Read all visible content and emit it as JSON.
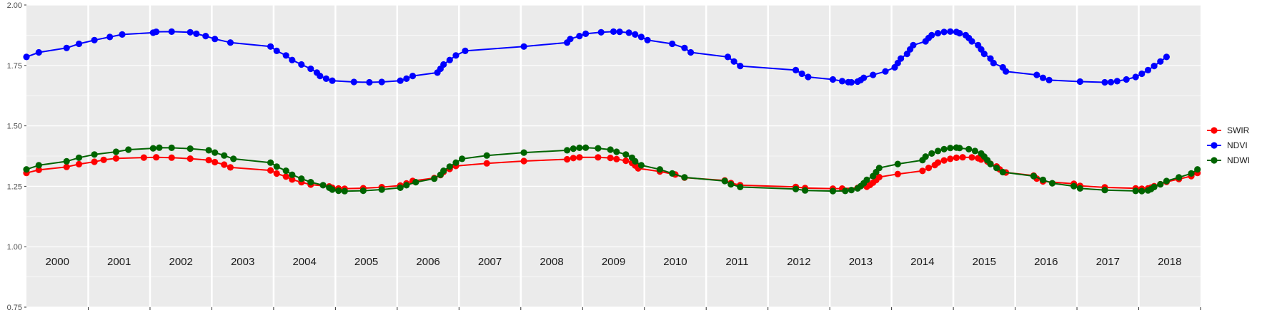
{
  "chart_data": {
    "type": "line",
    "title": "",
    "xlabel": "",
    "ylabel": "",
    "ylim": [
      0.75,
      2.0
    ],
    "yticks": [
      "0.75",
      "1.00",
      "1.25",
      "1.50",
      "1.75",
      "2.00"
    ],
    "xlim": [
      2000.0,
      2019.0
    ],
    "year_labels": [
      "2000",
      "2001",
      "2002",
      "2003",
      "2004",
      "2005",
      "2006",
      "2007",
      "2008",
      "2009",
      "2010",
      "2011",
      "2012",
      "2013",
      "2014",
      "2015",
      "2016",
      "2017",
      "2018"
    ],
    "grid": true,
    "legend_position": "right",
    "colors": {
      "panel_bg": "#ebebeb",
      "grid": "#ffffff",
      "SWIR": "#ff0000",
      "NDVI": "#0000ff",
      "NDWI": "#006400"
    },
    "series": [
      {
        "name": "SWIR",
        "color": "#ff0000",
        "x": [
          2000.0,
          2000.2,
          2000.65,
          2000.85,
          2001.1,
          2001.25,
          2001.45,
          2001.9,
          2002.1,
          2002.35,
          2002.65,
          2002.95,
          2003.05,
          2003.2,
          2003.3,
          2003.95,
          2004.05,
          2004.2,
          2004.3,
          2004.45,
          2004.6,
          2004.9,
          2004.95,
          2005.05,
          2005.15,
          2005.45,
          2005.75,
          2006.05,
          2006.15,
          2006.25,
          2006.6,
          2006.7,
          2006.75,
          2006.85,
          2006.95,
          2007.45,
          2008.05,
          2008.75,
          2008.85,
          2008.95,
          2009.25,
          2009.45,
          2009.55,
          2009.7,
          2009.8,
          2009.85,
          2009.9,
          2010.25,
          2010.5,
          2010.65,
          2011.3,
          2011.4,
          2011.55,
          2012.45,
          2012.6,
          2013.05,
          2013.2,
          2013.45,
          2013.6,
          2013.65,
          2013.7,
          2013.75,
          2013.8,
          2014.1,
          2014.5,
          2014.6,
          2014.7,
          2014.75,
          2014.85,
          2014.95,
          2015.05,
          2015.15,
          2015.3,
          2015.4,
          2015.45,
          2015.55,
          2015.6,
          2015.7,
          2015.75,
          2015.85,
          2016.3,
          2016.35,
          2016.45,
          2016.95,
          2017.05,
          2017.45,
          2017.95,
          2018.05,
          2018.15,
          2018.2,
          2018.25,
          2018.35,
          2018.45,
          2018.65,
          2018.85,
          2018.95
        ]
      },
      {
        "name": "NDVI",
        "color": "#0000ff",
        "x": [
          2000.0,
          2000.2,
          2000.65,
          2000.85,
          2001.1,
          2001.35,
          2001.55,
          2002.05,
          2002.1,
          2002.35,
          2002.65,
          2002.75,
          2002.9,
          2003.05,
          2003.3,
          2003.95,
          2004.05,
          2004.2,
          2004.3,
          2004.45,
          2004.6,
          2004.7,
          2004.75,
          2004.85,
          2004.95,
          2005.3,
          2005.55,
          2005.75,
          2006.05,
          2006.15,
          2006.25,
          2006.65,
          2006.7,
          2006.75,
          2006.85,
          2006.95,
          2007.1,
          2008.05,
          2008.75,
          2008.8,
          2008.95,
          2009.05,
          2009.3,
          2009.5,
          2009.6,
          2009.75,
          2009.85,
          2009.95,
          2010.05,
          2010.45,
          2010.65,
          2010.75,
          2011.35,
          2011.45,
          2011.55,
          2012.45,
          2012.55,
          2012.65,
          2013.05,
          2013.2,
          2013.3,
          2013.35,
          2013.45,
          2013.5,
          2013.55,
          2013.7,
          2013.9,
          2014.05,
          2014.1,
          2014.15,
          2014.25,
          2014.3,
          2014.35,
          2014.55,
          2014.6,
          2014.65,
          2014.75,
          2014.85,
          2014.95,
          2015.05,
          2015.1,
          2015.2,
          2015.25,
          2015.3,
          2015.4,
          2015.45,
          2015.5,
          2015.6,
          2015.65,
          2015.8,
          2015.85,
          2016.35,
          2016.45,
          2016.55,
          2017.05,
          2017.45,
          2017.55,
          2017.65,
          2017.8,
          2017.95,
          2018.05,
          2018.15,
          2018.25,
          2018.35,
          2018.45
        ]
      },
      {
        "name": "NDWI",
        "color": "#006400",
        "x": [
          2000.0,
          2000.2,
          2000.65,
          2000.85,
          2001.1,
          2001.45,
          2001.65,
          2002.05,
          2002.15,
          2002.35,
          2002.65,
          2002.95,
          2003.05,
          2003.2,
          2003.35,
          2003.95,
          2004.05,
          2004.2,
          2004.3,
          2004.45,
          2004.6,
          2004.8,
          2004.9,
          2004.95,
          2005.05,
          2005.15,
          2005.45,
          2005.75,
          2006.05,
          2006.15,
          2006.3,
          2006.6,
          2006.7,
          2006.75,
          2006.85,
          2006.95,
          2007.05,
          2007.45,
          2008.05,
          2008.75,
          2008.85,
          2008.95,
          2009.05,
          2009.25,
          2009.45,
          2009.55,
          2009.7,
          2009.8,
          2009.85,
          2009.95,
          2010.25,
          2010.45,
          2010.65,
          2011.3,
          2011.4,
          2011.55,
          2012.45,
          2012.6,
          2013.05,
          2013.25,
          2013.35,
          2013.45,
          2013.5,
          2013.55,
          2013.6,
          2013.7,
          2013.75,
          2013.8,
          2014.1,
          2014.5,
          2014.55,
          2014.65,
          2014.75,
          2014.85,
          2014.95,
          2015.05,
          2015.1,
          2015.25,
          2015.35,
          2015.45,
          2015.5,
          2015.55,
          2015.6,
          2015.7,
          2015.8,
          2016.3,
          2016.45,
          2016.6,
          2016.95,
          2017.05,
          2017.45,
          2017.95,
          2018.05,
          2018.15,
          2018.2,
          2018.25,
          2018.35,
          2018.45,
          2018.65,
          2018.85,
          2018.95
        ]
      }
    ]
  },
  "legend": {
    "items": [
      "SWIR",
      "NDVI",
      "NDWI"
    ]
  }
}
